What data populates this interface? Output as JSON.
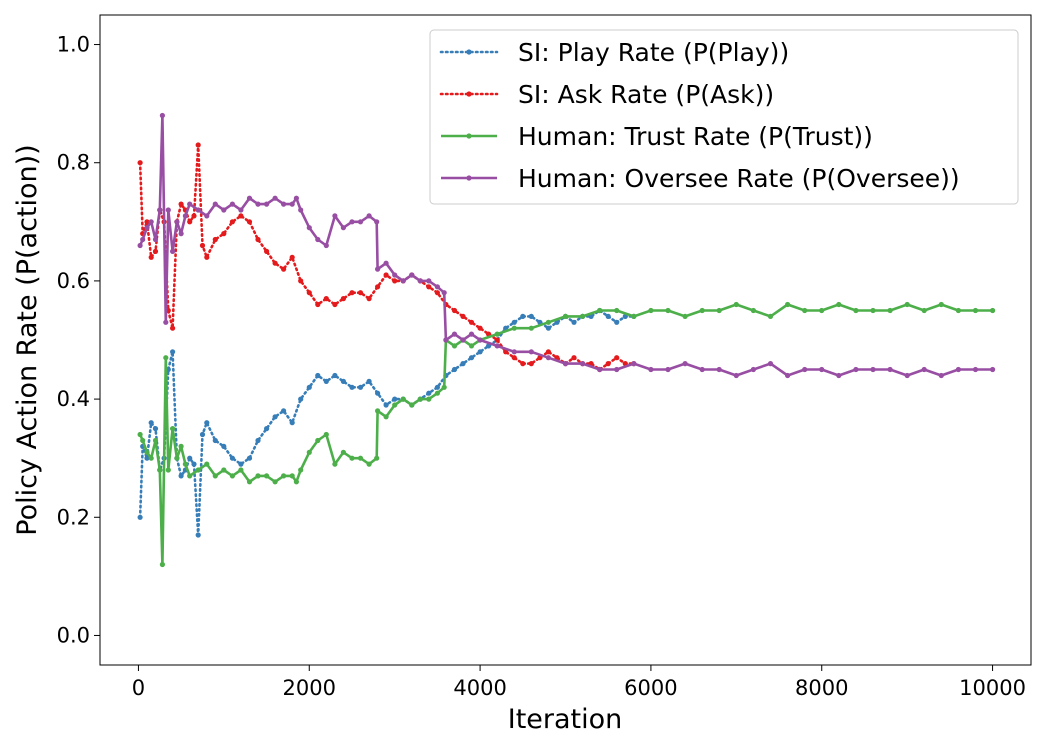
{
  "chart_data": {
    "type": "line",
    "title": "",
    "xlabel": "Iteration",
    "ylabel": "Policy Action Rate (P(action))",
    "xlim": [
      -450,
      10450
    ],
    "ylim": [
      -0.05,
      1.05
    ],
    "xticks": [
      0,
      2000,
      4000,
      6000,
      8000,
      10000
    ],
    "yticks": [
      0.0,
      0.2,
      0.4,
      0.6,
      0.8,
      1.0
    ],
    "xtick_labels": [
      "0",
      "2000",
      "4000",
      "6000",
      "8000",
      "10000"
    ],
    "ytick_labels": [
      "0.0",
      "0.2",
      "0.4",
      "0.6",
      "0.8",
      "1.0"
    ],
    "grid": false,
    "legend_position": "top-right",
    "series": [
      {
        "name": "SI: Play Rate (P(Play))",
        "color": "#377eb8",
        "style": "dotted",
        "x": [
          20,
          50,
          100,
          150,
          200,
          250,
          300,
          350,
          400,
          450,
          500,
          550,
          600,
          650,
          700,
          750,
          800,
          900,
          1000,
          1100,
          1200,
          1300,
          1400,
          1500,
          1600,
          1700,
          1800,
          1900,
          2000,
          2100,
          2200,
          2300,
          2400,
          2500,
          2600,
          2700,
          2800,
          2900,
          3000,
          3100,
          3200,
          3300,
          3400,
          3500,
          3600,
          3700,
          3800,
          3900,
          4000,
          4100,
          4200,
          4300,
          4400,
          4500,
          4600,
          4700,
          4800,
          4900,
          5000,
          5100,
          5200,
          5300,
          5400,
          5500,
          5600,
          5700,
          5800
        ],
        "y": [
          0.2,
          0.32,
          0.3,
          0.36,
          0.35,
          0.28,
          0.3,
          0.45,
          0.48,
          0.3,
          0.27,
          0.28,
          0.3,
          0.29,
          0.17,
          0.34,
          0.36,
          0.33,
          0.32,
          0.3,
          0.29,
          0.3,
          0.33,
          0.35,
          0.37,
          0.38,
          0.36,
          0.4,
          0.42,
          0.44,
          0.43,
          0.44,
          0.43,
          0.42,
          0.42,
          0.43,
          0.41,
          0.39,
          0.4,
          0.4,
          0.39,
          0.4,
          0.41,
          0.42,
          0.44,
          0.45,
          0.46,
          0.47,
          0.48,
          0.49,
          0.5,
          0.52,
          0.53,
          0.54,
          0.54,
          0.53,
          0.52,
          0.53,
          0.54,
          0.53,
          0.54,
          0.54,
          0.55,
          0.54,
          0.53,
          0.54,
          0.54
        ]
      },
      {
        "name": "SI: Ask Rate (P(Ask))",
        "color": "#e41a1c",
        "style": "dotted",
        "x": [
          20,
          50,
          100,
          150,
          200,
          250,
          300,
          350,
          400,
          450,
          500,
          550,
          600,
          650,
          700,
          750,
          800,
          900,
          1000,
          1100,
          1200,
          1300,
          1400,
          1500,
          1600,
          1700,
          1800,
          1900,
          2000,
          2100,
          2200,
          2300,
          2400,
          2500,
          2600,
          2700,
          2800,
          2900,
          3000,
          3100,
          3200,
          3300,
          3400,
          3500,
          3600,
          3700,
          3800,
          3900,
          4000,
          4100,
          4200,
          4300,
          4400,
          4500,
          4600,
          4700,
          4800,
          4900,
          5000,
          5100,
          5200,
          5300,
          5400,
          5500,
          5600,
          5700,
          5800
        ],
        "y": [
          0.8,
          0.68,
          0.7,
          0.64,
          0.65,
          0.72,
          0.7,
          0.55,
          0.52,
          0.7,
          0.73,
          0.72,
          0.7,
          0.71,
          0.83,
          0.66,
          0.64,
          0.67,
          0.68,
          0.7,
          0.71,
          0.7,
          0.67,
          0.65,
          0.63,
          0.62,
          0.64,
          0.6,
          0.58,
          0.56,
          0.57,
          0.56,
          0.57,
          0.58,
          0.58,
          0.57,
          0.59,
          0.61,
          0.6,
          0.6,
          0.61,
          0.6,
          0.59,
          0.58,
          0.56,
          0.55,
          0.54,
          0.53,
          0.52,
          0.51,
          0.5,
          0.48,
          0.47,
          0.46,
          0.46,
          0.47,
          0.48,
          0.47,
          0.46,
          0.47,
          0.46,
          0.46,
          0.45,
          0.46,
          0.47,
          0.46,
          0.46
        ]
      },
      {
        "name": "Human: Trust Rate (P(Trust))",
        "color": "#4daf4a",
        "style": "solid",
        "x": [
          20,
          50,
          100,
          150,
          200,
          250,
          280,
          320,
          350,
          400,
          450,
          500,
          550,
          600,
          700,
          800,
          900,
          1000,
          1100,
          1200,
          1300,
          1400,
          1500,
          1600,
          1700,
          1800,
          1850,
          1900,
          2000,
          2100,
          2200,
          2300,
          2400,
          2500,
          2600,
          2700,
          2790,
          2800,
          2900,
          3000,
          3100,
          3200,
          3300,
          3400,
          3500,
          3580,
          3600,
          3700,
          3800,
          3900,
          4000,
          4200,
          4400,
          4600,
          4800,
          5000,
          5200,
          5400,
          5600,
          5800,
          6000,
          6200,
          6400,
          6600,
          6800,
          7000,
          7200,
          7400,
          7600,
          7800,
          8000,
          8200,
          8400,
          8600,
          8800,
          9000,
          9200,
          9400,
          9600,
          9800,
          10000
        ],
        "y": [
          0.34,
          0.33,
          0.31,
          0.3,
          0.33,
          0.28,
          0.12,
          0.47,
          0.28,
          0.35,
          0.3,
          0.32,
          0.29,
          0.27,
          0.28,
          0.29,
          0.27,
          0.28,
          0.27,
          0.28,
          0.26,
          0.27,
          0.27,
          0.26,
          0.27,
          0.27,
          0.26,
          0.28,
          0.31,
          0.33,
          0.34,
          0.29,
          0.31,
          0.3,
          0.3,
          0.29,
          0.3,
          0.38,
          0.37,
          0.39,
          0.4,
          0.39,
          0.4,
          0.4,
          0.41,
          0.42,
          0.5,
          0.49,
          0.5,
          0.49,
          0.5,
          0.51,
          0.52,
          0.52,
          0.53,
          0.54,
          0.54,
          0.55,
          0.55,
          0.54,
          0.55,
          0.55,
          0.54,
          0.55,
          0.55,
          0.56,
          0.55,
          0.54,
          0.56,
          0.55,
          0.55,
          0.56,
          0.55,
          0.55,
          0.55,
          0.56,
          0.55,
          0.56,
          0.55,
          0.55,
          0.55
        ]
      },
      {
        "name": "Human: Oversee Rate (P(Oversee))",
        "color": "#984ea3",
        "style": "solid",
        "x": [
          20,
          50,
          100,
          150,
          200,
          250,
          280,
          320,
          350,
          400,
          450,
          500,
          550,
          600,
          700,
          800,
          900,
          1000,
          1100,
          1200,
          1300,
          1400,
          1500,
          1600,
          1700,
          1800,
          1850,
          1900,
          2000,
          2100,
          2200,
          2300,
          2400,
          2500,
          2600,
          2700,
          2790,
          2800,
          2900,
          3000,
          3100,
          3200,
          3300,
          3400,
          3500,
          3580,
          3600,
          3700,
          3800,
          3900,
          4000,
          4200,
          4400,
          4600,
          4800,
          5000,
          5200,
          5400,
          5600,
          5800,
          6000,
          6200,
          6400,
          6600,
          6800,
          7000,
          7200,
          7400,
          7600,
          7800,
          8000,
          8200,
          8400,
          8600,
          8800,
          9000,
          9200,
          9400,
          9600,
          9800,
          10000
        ],
        "y": [
          0.66,
          0.67,
          0.69,
          0.7,
          0.67,
          0.72,
          0.88,
          0.53,
          0.72,
          0.65,
          0.7,
          0.68,
          0.71,
          0.73,
          0.72,
          0.71,
          0.73,
          0.72,
          0.73,
          0.72,
          0.74,
          0.73,
          0.73,
          0.74,
          0.73,
          0.73,
          0.74,
          0.72,
          0.69,
          0.67,
          0.66,
          0.71,
          0.69,
          0.7,
          0.7,
          0.71,
          0.7,
          0.62,
          0.63,
          0.61,
          0.6,
          0.61,
          0.6,
          0.6,
          0.59,
          0.58,
          0.5,
          0.51,
          0.5,
          0.51,
          0.5,
          0.49,
          0.48,
          0.48,
          0.47,
          0.46,
          0.46,
          0.45,
          0.45,
          0.46,
          0.45,
          0.45,
          0.46,
          0.45,
          0.45,
          0.44,
          0.45,
          0.46,
          0.44,
          0.45,
          0.45,
          0.44,
          0.45,
          0.45,
          0.45,
          0.44,
          0.45,
          0.44,
          0.45,
          0.45,
          0.45
        ]
      }
    ]
  }
}
